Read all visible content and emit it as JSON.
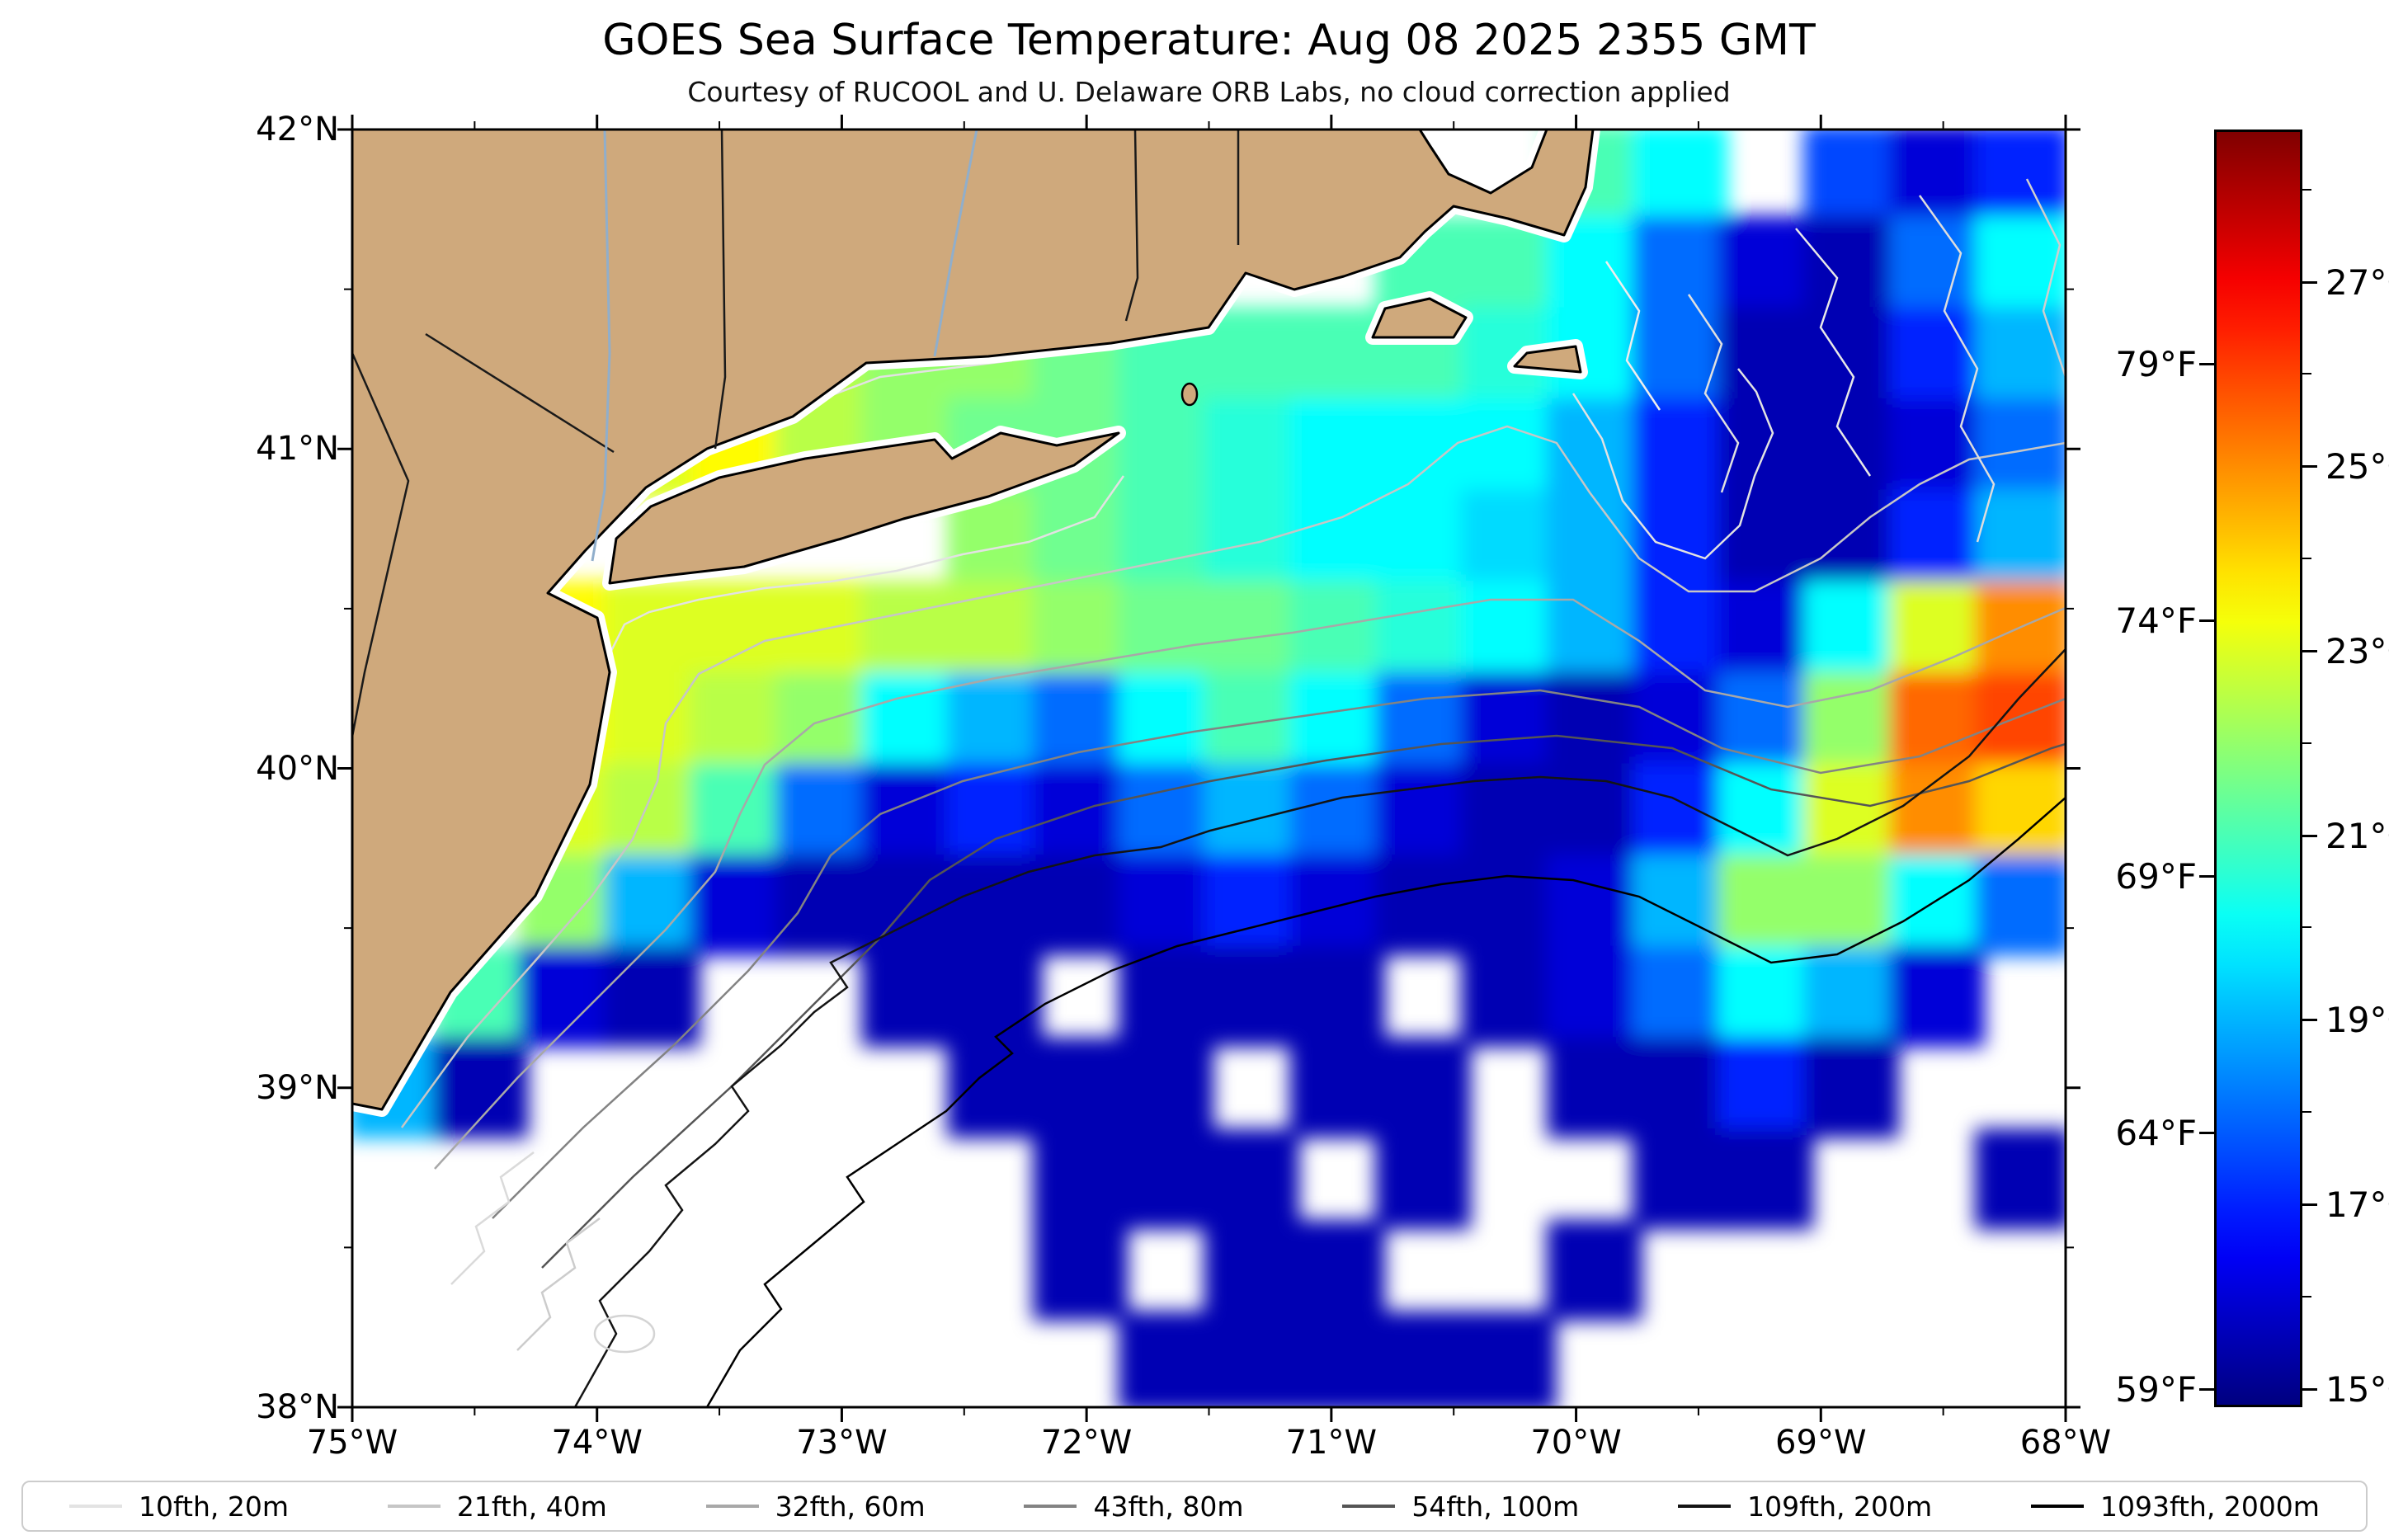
{
  "title": "GOES Sea Surface Temperature: Aug 08 2025 2355 GMT",
  "subtitle": "Courtesy of RUCOOL and U. Delaware ORB Labs, no cloud correction applied",
  "axes": {
    "lon_ticks": [
      {
        "label": "75°W",
        "deg": -75
      },
      {
        "label": "74°W",
        "deg": -74
      },
      {
        "label": "73°W",
        "deg": -73
      },
      {
        "label": "72°W",
        "deg": -72
      },
      {
        "label": "71°W",
        "deg": -71
      },
      {
        "label": "70°W",
        "deg": -70
      },
      {
        "label": "69°W",
        "deg": -69
      },
      {
        "label": "68°W",
        "deg": -68
      }
    ],
    "lon_minor": [
      -74.5,
      -73.5,
      -72.5,
      -71.5,
      -70.5,
      -69.5,
      -68.5
    ],
    "lat_ticks": [
      {
        "label": "42°N",
        "deg": 42
      },
      {
        "label": "41°N",
        "deg": 41
      },
      {
        "label": "40°N",
        "deg": 40
      },
      {
        "label": "39°N",
        "deg": 39
      },
      {
        "label": "38°N",
        "deg": 38
      }
    ],
    "lat_minor": [
      41.5,
      40.5,
      39.5,
      38.5
    ]
  },
  "colorbar": {
    "vmin_c": 14.8,
    "vmax_c": 28.65,
    "units_right": "°C",
    "units_left": "°F",
    "celsius_ticks": [
      {
        "label": "27°C",
        "c": 27
      },
      {
        "label": "25°C",
        "c": 25
      },
      {
        "label": "23°C",
        "c": 23
      },
      {
        "label": "21°C",
        "c": 21
      },
      {
        "label": "19°C",
        "c": 19
      },
      {
        "label": "17°C",
        "c": 17
      },
      {
        "label": "15°C",
        "c": 15
      }
    ],
    "celsius_minor_ticks": [
      28,
      26,
      24,
      22,
      20,
      18,
      16
    ],
    "fahrenheit_ticks": [
      {
        "label": "79°F",
        "c": 26.111
      },
      {
        "label": "74°F",
        "c": 23.333
      },
      {
        "label": "69°F",
        "c": 20.556
      },
      {
        "label": "64°F",
        "c": 17.778
      },
      {
        "label": "59°F",
        "c": 15.0
      }
    ]
  },
  "legend": {
    "items": [
      {
        "label": "10fth, 20m",
        "color": "#e3e3e3"
      },
      {
        "label": "21fth, 40m",
        "color": "#c6c6c6"
      },
      {
        "label": "32fth, 60m",
        "color": "#a8a8a8"
      },
      {
        "label": "43fth, 80m",
        "color": "#838383"
      },
      {
        "label": "54fth, 100m",
        "color": "#555555"
      },
      {
        "label": "109fth, 200m",
        "color": "#141414"
      },
      {
        "label": "1093fth, 2000m",
        "color": "#000000"
      }
    ]
  },
  "colors": {
    "land": "#cfa97c",
    "coastline": "#000000",
    "no_data": "#ffffff",
    "colorbar_top": "#800000",
    "colorbar_bottom": "#000080"
  },
  "chart_data": {
    "type": "heatmap",
    "title": "GOES Sea Surface Temperature: Aug 08 2025 2355 GMT",
    "subtitle": "Courtesy of RUCOOL and U. Delaware ORB Labs, no cloud correction applied",
    "colormap": "jet",
    "units": "°C",
    "x": {
      "label": "Longitude",
      "range_deg": [
        -75,
        -68
      ],
      "tick_labels": [
        "75°W",
        "74°W",
        "73°W",
        "72°W",
        "71°W",
        "70°W",
        "69°W",
        "68°W"
      ]
    },
    "y": {
      "label": "Latitude",
      "range_deg": [
        38,
        42
      ],
      "tick_labels": [
        "42°N",
        "41°N",
        "40°N",
        "39°N",
        "38°N"
      ]
    },
    "colorbar_range_c": [
      14.8,
      28.65
    ],
    "colorbar_ticks_c": [
      27,
      25,
      23,
      21,
      19,
      17,
      15
    ],
    "colorbar_ticks_f": [
      79,
      74,
      69,
      64,
      59
    ],
    "legend_entries": [
      "10fth, 20m",
      "21fth, 40m",
      "32fth, 60m",
      "43fth, 80m",
      "54fth, 100m",
      "109fth, 200m",
      "1093fth, 2000m"
    ],
    "no_data_value": null,
    "grid": {
      "lon_centers": [
        -74.825,
        -74.475,
        -74.125,
        -73.775,
        -73.425,
        -73.075,
        -72.725,
        -72.375,
        -72.025,
        -71.675,
        -71.325,
        -70.975,
        -70.625,
        -70.275,
        -69.925,
        -69.575,
        -69.225,
        -68.875,
        -68.525,
        -68.175
      ],
      "lat_centers": [
        41.857,
        41.571,
        41.286,
        41.0,
        40.714,
        40.429,
        40.143,
        39.857,
        39.571,
        39.286,
        39.0,
        38.714,
        38.429,
        38.143
      ],
      "sst_c": [
        [
          null,
          null,
          null,
          null,
          null,
          null,
          null,
          null,
          null,
          null,
          null,
          null,
          null,
          null,
          21,
          20,
          null,
          17.5,
          16,
          17
        ],
        [
          null,
          null,
          null,
          null,
          null,
          null,
          null,
          null,
          null,
          null,
          null,
          null,
          21,
          21,
          20,
          18,
          16,
          15.5,
          18,
          20
        ],
        [
          null,
          null,
          null,
          23,
          23,
          22.5,
          22,
          22,
          21.5,
          21,
          21,
          21,
          21,
          20.5,
          20,
          18,
          15.5,
          15.5,
          17,
          19
        ],
        [
          null,
          null,
          null,
          23,
          23.5,
          22.5,
          22,
          21.5,
          21.5,
          21,
          20.5,
          20,
          20,
          20,
          19,
          17,
          15.5,
          15.5,
          16,
          18
        ],
        [
          null,
          null,
          null,
          null,
          null,
          null,
          null,
          22,
          21.5,
          21,
          20.5,
          20,
          20,
          19.5,
          19,
          17,
          15.5,
          15.5,
          17,
          19
        ],
        [
          null,
          null,
          23.5,
          23,
          23,
          23,
          22.5,
          22.5,
          22,
          21.5,
          21.5,
          21,
          20.5,
          20,
          19,
          17,
          16,
          20,
          23,
          25
        ],
        [
          null,
          null,
          23.5,
          23,
          22.5,
          22,
          20,
          19,
          18,
          20,
          21,
          20,
          18,
          16,
          15.5,
          16,
          18,
          22,
          25.5,
          26
        ],
        [
          null,
          null,
          23,
          22.5,
          21,
          18,
          16,
          17,
          16,
          18,
          19,
          18,
          16,
          15.5,
          15.5,
          17,
          20,
          23,
          25,
          24
        ],
        [
          null,
          null,
          22,
          19,
          16,
          15.5,
          15.5,
          15.5,
          15.5,
          16,
          17,
          16,
          15.5,
          15.5,
          16,
          19,
          22,
          22,
          20,
          18
        ],
        [
          null,
          21,
          16,
          15.5,
          null,
          null,
          15.5,
          15.5,
          null,
          15.5,
          15.5,
          15.5,
          null,
          15.5,
          16,
          18,
          20,
          19,
          16,
          null
        ],
        [
          19,
          15.5,
          null,
          null,
          null,
          null,
          null,
          15.5,
          15.5,
          15.5,
          null,
          15.5,
          15.5,
          null,
          15.5,
          15.5,
          17,
          15.5,
          null,
          null
        ],
        [
          null,
          null,
          null,
          null,
          null,
          null,
          null,
          null,
          15.5,
          15.5,
          15.5,
          null,
          15.5,
          null,
          null,
          15.5,
          15.5,
          null,
          null,
          15.5
        ],
        [
          null,
          null,
          null,
          null,
          null,
          null,
          null,
          null,
          15.5,
          null,
          15.5,
          15.5,
          null,
          null,
          15.5,
          null,
          null,
          null,
          null,
          null
        ],
        [
          null,
          null,
          null,
          null,
          null,
          null,
          null,
          null,
          null,
          15.5,
          15.5,
          15.5,
          15.5,
          15.5,
          null,
          null,
          null,
          null,
          null,
          null
        ]
      ]
    }
  }
}
